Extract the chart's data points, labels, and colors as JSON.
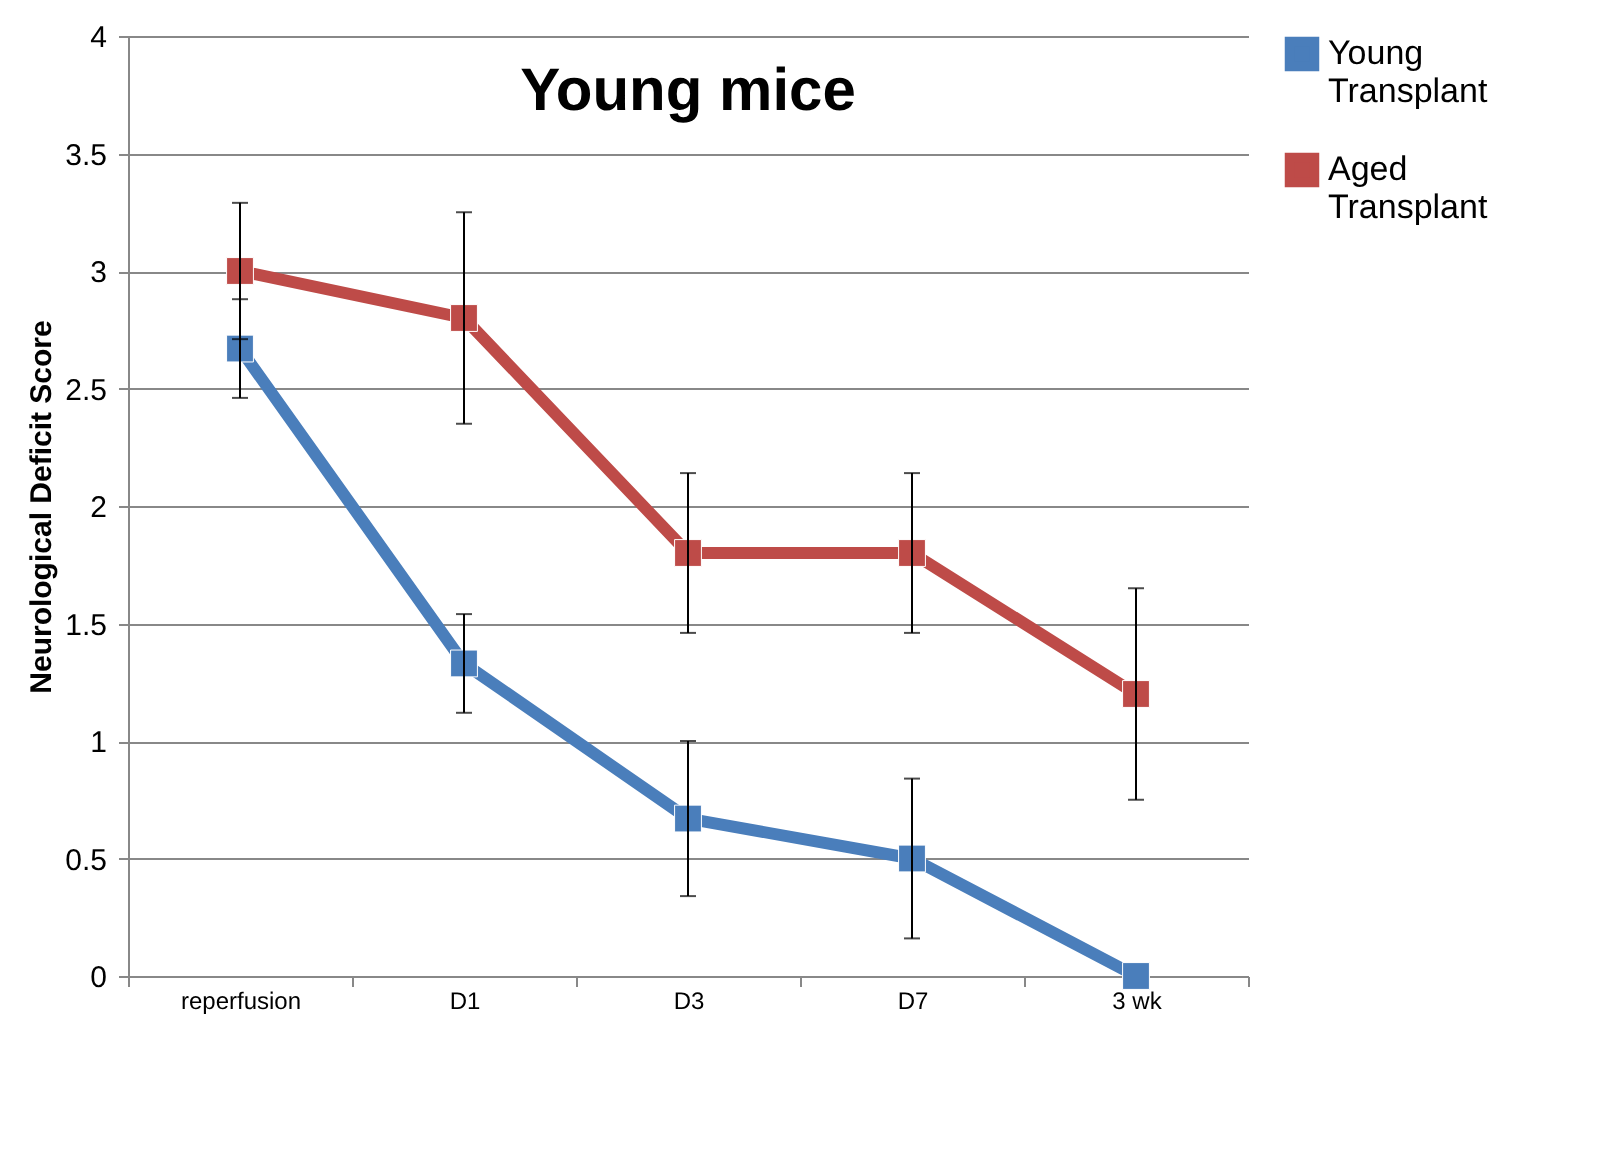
{
  "chart_data": {
    "type": "line",
    "title": "Young mice",
    "ylabel": "Neurological Deficit Score",
    "categories": [
      "reperfusion",
      "D1",
      "D3",
      "D7",
      "3 wk"
    ],
    "series": [
      {
        "name": "Young Transplant",
        "color": "#4a7ebb",
        "values": [
          2.67,
          1.33,
          0.67,
          0.5,
          0
        ],
        "errors": [
          0.21,
          0.21,
          0.33,
          0.34,
          null
        ]
      },
      {
        "name": "Aged Transplant",
        "color": "#be4b48",
        "values": [
          3.0,
          2.8,
          1.8,
          1.8,
          1.2
        ],
        "errors": [
          0.29,
          0.45,
          0.34,
          0.34,
          0.45
        ]
      }
    ],
    "ylim": [
      0,
      4
    ],
    "yticks": [
      0,
      0.5,
      1,
      1.5,
      2,
      2.5,
      3,
      3.5,
      4
    ],
    "grid": "y",
    "legend": "right",
    "marker": "square",
    "line_style": "solid"
  }
}
